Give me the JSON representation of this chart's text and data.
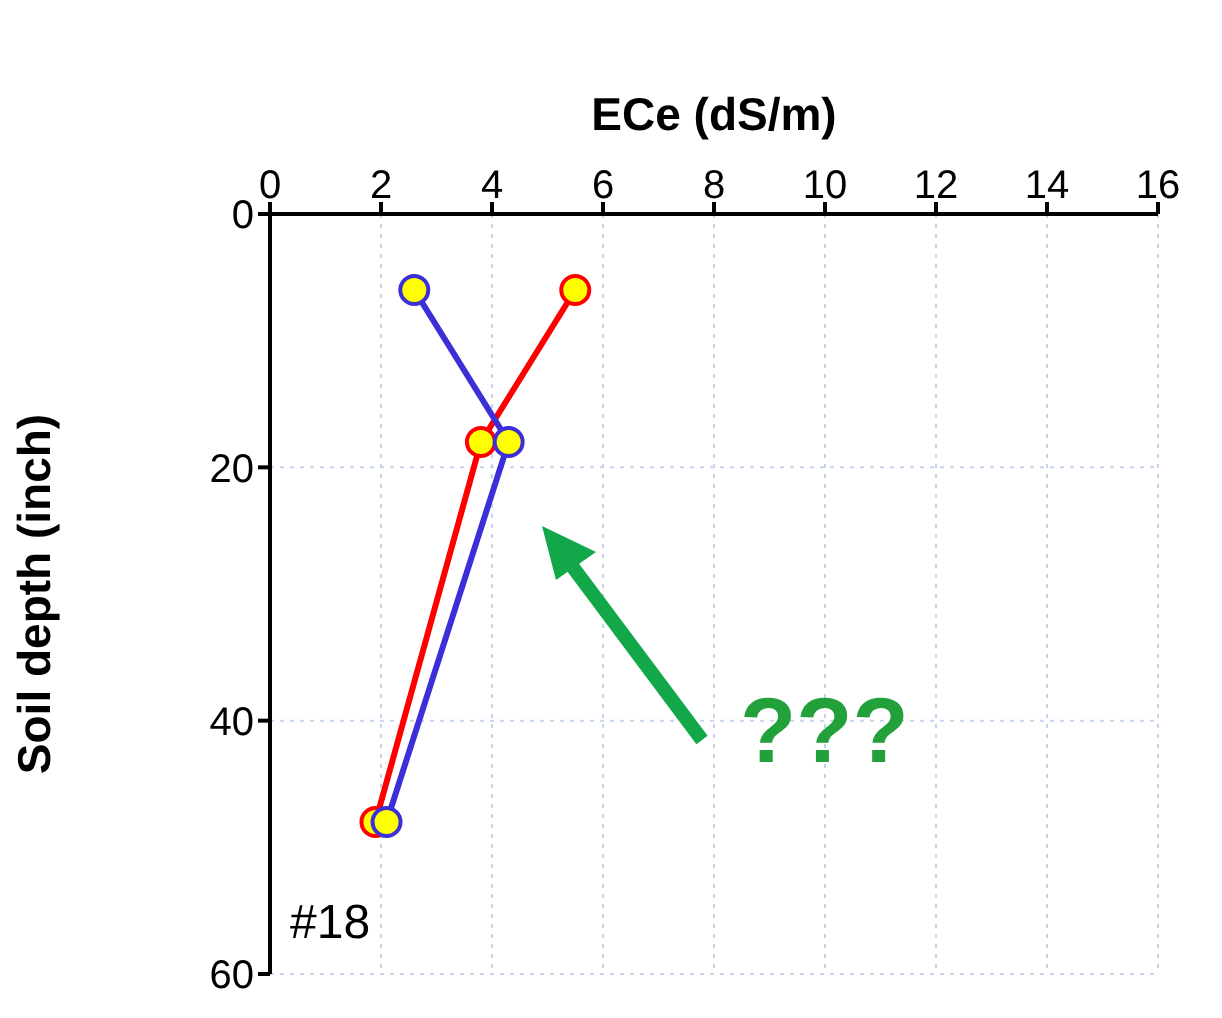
{
  "chart_data": {
    "type": "line",
    "xlabel": "ECe (dS/m)",
    "ylabel": "Soil depth (inch)",
    "xlim": [
      0,
      16
    ],
    "xticks": [
      0,
      2,
      4,
      6,
      8,
      10,
      12,
      14,
      16
    ],
    "ylim": [
      60,
      0
    ],
    "yticks": [
      0,
      20,
      40,
      60
    ],
    "grid": true,
    "marker": "circle",
    "annotations": [
      "#18",
      "???"
    ],
    "series": [
      {
        "color": "#ff0000",
        "x": [
          5.5,
          3.8,
          1.9
        ],
        "values": [
          6,
          18,
          48
        ]
      },
      {
        "color": "#3b2fd8",
        "x": [
          2.6,
          4.3,
          2.1
        ],
        "values": [
          6,
          18,
          48
        ]
      }
    ]
  }
}
